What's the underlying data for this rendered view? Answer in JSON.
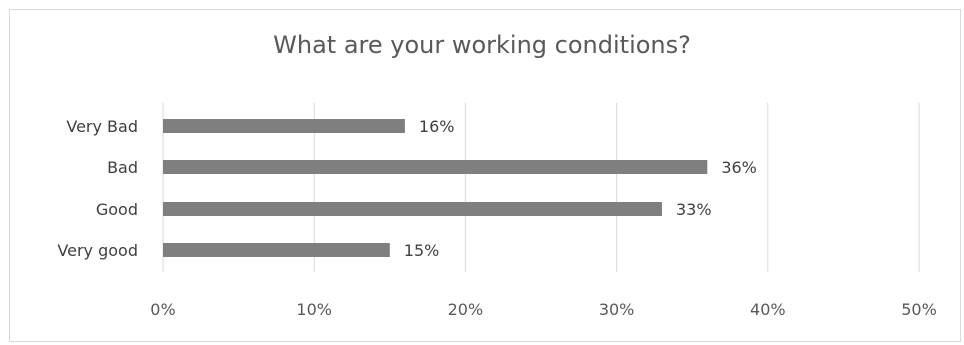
{
  "chart_data": {
    "type": "bar",
    "orientation": "horizontal",
    "title": "What are your working conditions?",
    "categories": [
      "Very Bad",
      "Bad",
      "Good",
      "Very good"
    ],
    "values": [
      16,
      36,
      33,
      15
    ],
    "data_labels": [
      "16%",
      "36%",
      "33%",
      "15%"
    ],
    "xlim": [
      0,
      50
    ],
    "x_ticks": [
      0,
      10,
      20,
      30,
      40,
      50
    ],
    "x_tick_labels": [
      "0%",
      "10%",
      "20%",
      "30%",
      "40%",
      "50%"
    ],
    "xlabel": "",
    "ylabel": "",
    "grid": true,
    "legend": "none",
    "bar_color": "#7f7f7f",
    "grid_color": "#d9d9d9"
  }
}
